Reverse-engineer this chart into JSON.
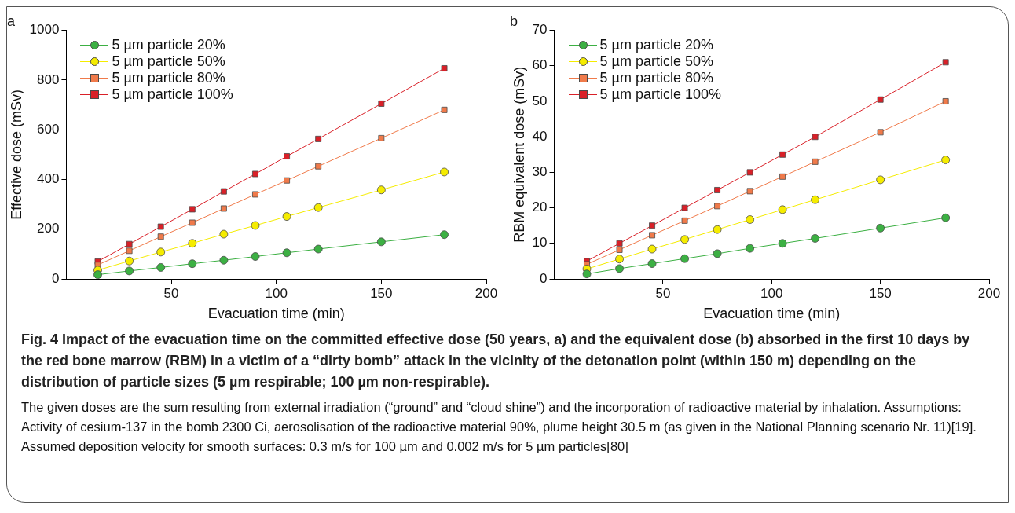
{
  "chart_data": [
    {
      "type": "line",
      "title": "a",
      "xlabel": "Evacuation time (min)",
      "ylabel": "Effective dose (mSv)",
      "x": [
        15,
        30,
        45,
        60,
        75,
        90,
        105,
        120,
        150,
        180
      ],
      "xlim": [
        0,
        200
      ],
      "xticks": [
        50,
        100,
        150,
        200
      ],
      "ylim": [
        0,
        1000
      ],
      "yticks": [
        0,
        200,
        400,
        600,
        800,
        1000
      ],
      "grid": false,
      "legend": "top left",
      "series": [
        {
          "name": "5 µm particle 20%",
          "color": "#3cb043",
          "marker": "circle",
          "values": [
            17,
            32,
            46,
            61,
            75,
            90,
            105,
            120,
            149,
            178
          ]
        },
        {
          "name": "5 µm particle 50%",
          "color": "#f5ec00",
          "marker": "circle",
          "values": [
            35,
            72,
            108,
            143,
            180,
            215,
            251,
            287,
            358,
            430
          ]
        },
        {
          "name": "5 µm particle 80%",
          "color": "#f07a4a",
          "marker": "square",
          "values": [
            56,
            113,
            170,
            226,
            283,
            340,
            396,
            453,
            566,
            680
          ]
        },
        {
          "name": "5 µm particle 100%",
          "color": "#d92028",
          "marker": "square",
          "values": [
            70,
            140,
            210,
            280,
            352,
            422,
            493,
            563,
            705,
            847
          ]
        }
      ]
    },
    {
      "type": "line",
      "title": "b",
      "xlabel": "Evacuation time (min)",
      "ylabel": "RBM equivalent dose (mSv)",
      "x": [
        15,
        30,
        45,
        60,
        75,
        90,
        105,
        120,
        150,
        180
      ],
      "xlim": [
        0,
        200
      ],
      "xticks": [
        50,
        100,
        150,
        200
      ],
      "ylim": [
        0,
        70
      ],
      "yticks": [
        0,
        10,
        20,
        30,
        40,
        50,
        60,
        70
      ],
      "grid": false,
      "legend": "top left",
      "series": [
        {
          "name": "5 µm particle 20%",
          "color": "#3cb043",
          "marker": "circle",
          "values": [
            1.4,
            2.9,
            4.3,
            5.7,
            7.1,
            8.6,
            10,
            11.4,
            14.3,
            17.2
          ]
        },
        {
          "name": "5 µm particle 50%",
          "color": "#f5ec00",
          "marker": "circle",
          "values": [
            2.8,
            5.6,
            8.4,
            11.1,
            13.9,
            16.7,
            19.5,
            22.3,
            27.9,
            33.5
          ]
        },
        {
          "name": "5 µm particle 80%",
          "color": "#f07a4a",
          "marker": "square",
          "values": [
            4.1,
            8.2,
            12.3,
            16.4,
            20.5,
            24.7,
            28.8,
            33,
            41.3,
            50
          ]
        },
        {
          "name": "5 µm particle 100%",
          "color": "#d92028",
          "marker": "square",
          "values": [
            5,
            10,
            15,
            20,
            25,
            30,
            35,
            40,
            50.5,
            61
          ]
        }
      ]
    },
    {
      "type": "other",
      "title": "Fig. 4    Impact of the evacuation time on the committed effective dose (50 years, a) and the equivalent dose (b) absorbed in the first 10 days by the red bone marrow (RBM) in a victim of a “dirty bomb” attack in the vicinity of the detonation point (within 150 m) depending on the distribution of particle sizes (5 µm respirable; 100 µm non-respirable).",
      "annotations": [
        "The given doses are the sum resulting from external irradiation (“ground” and “cloud shine”) and the incorporation of radioactive material by inhalation. Assumptions: Activity of cesium-137 in the bomb 2300 Ci, aerosolisation of the radioactive material 90%, plume height 30.5 m (as given in the National Planning scenario Nr. 11)[19]. Assumed deposition velocity for smooth surfaces: 0.3 m/s for 100 µm and 0.002 m/s for 5 µm particles[80]"
      ]
    }
  ]
}
